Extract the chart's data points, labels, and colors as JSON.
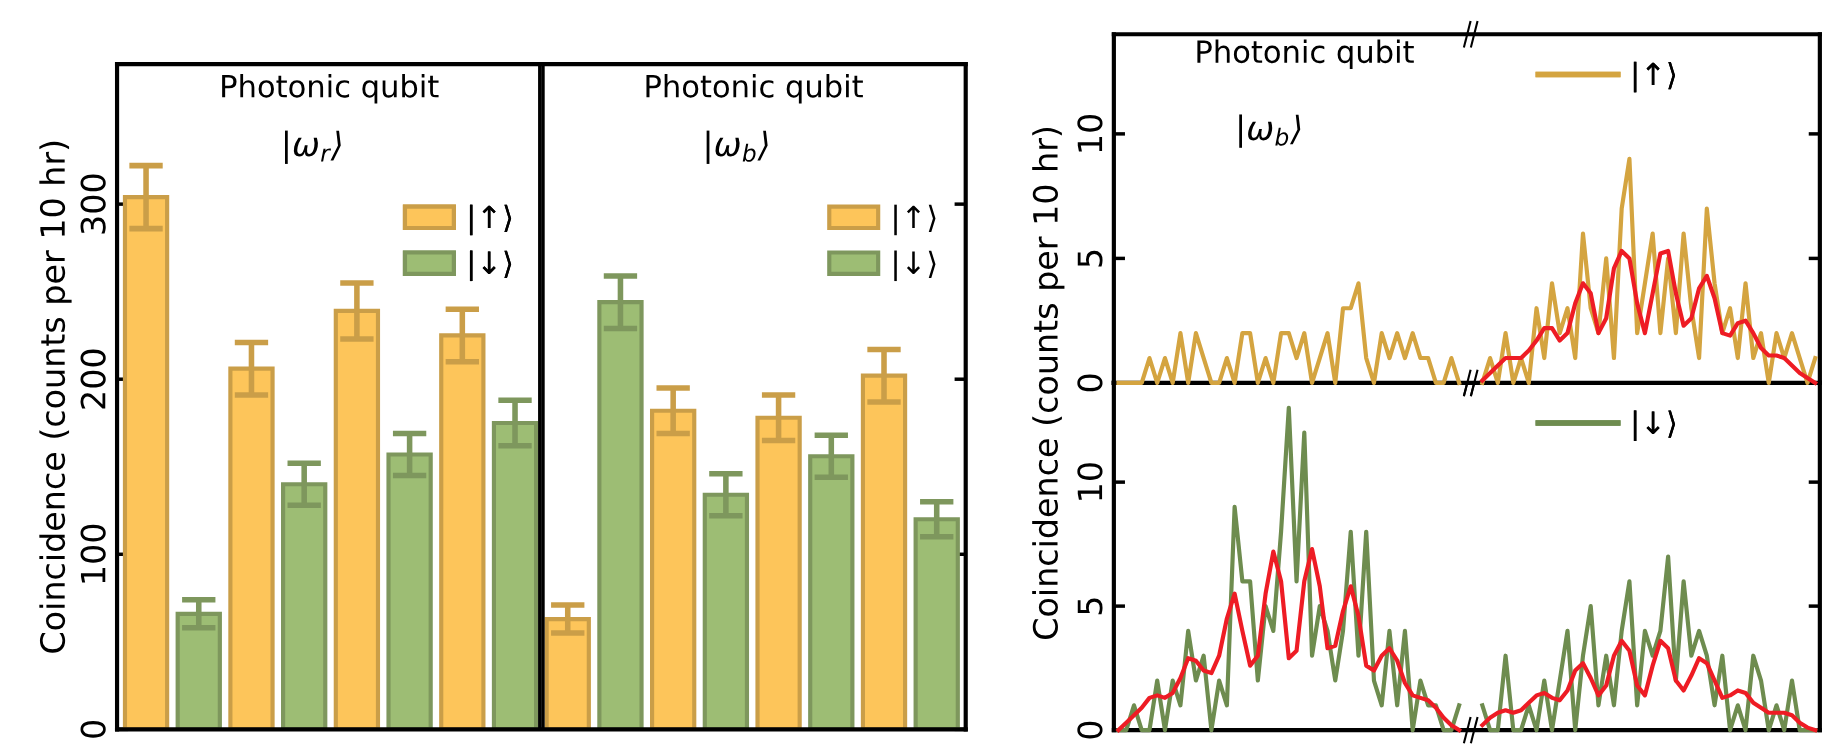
{
  "chart_data": [
    {
      "type": "bar",
      "title": "Photonic qubit",
      "subtitle": "|ω$_{r}$⟩",
      "ylabel": "Coincidence (counts per 10 hr)",
      "annotations": [
        "Photonic qubit",
        "|ω$_{b}$⟩"
      ],
      "categories": [
        null,
        null,
        null,
        null,
        null,
        null,
        null,
        null,
        null,
        null,
        null,
        null,
        null,
        null,
        null,
        null
      ],
      "series": [
        {
          "name": "|↑⟩",
          "color": "#fdc55a",
          "values": [
            304,
            null,
            206,
            null,
            239,
            null,
            225,
            null,
            63,
            null,
            182,
            null,
            178,
            null,
            202,
            null
          ],
          "errors": [
            18,
            null,
            15,
            null,
            16,
            null,
            15,
            null,
            8,
            null,
            13,
            null,
            13,
            null,
            15,
            null
          ]
        },
        {
          "name": "|↓⟩",
          "color": "#9dbd74",
          "values": [
            null,
            66,
            null,
            140,
            null,
            157,
            null,
            175,
            null,
            244,
            null,
            134,
            null,
            156,
            null,
            120
          ],
          "errors": [
            null,
            8,
            null,
            12,
            null,
            12,
            null,
            13,
            null,
            15,
            null,
            12,
            null,
            12,
            null,
            10
          ]
        }
      ],
      "ylim": [
        0,
        380
      ],
      "yticks": [
        0,
        100,
        200,
        300
      ],
      "legend": "top right",
      "tick_labels": "y"
    },
    {
      "type": "line",
      "title": "Photonic qubit",
      "subtitle": "|ω$_{b}$⟩",
      "ylabel": "Coincidence (counts per 10 hr)",
      "categories": [
        null,
        null,
        null,
        null,
        null,
        null,
        null,
        null,
        null,
        null,
        null,
        null,
        null,
        null,
        null,
        null,
        null,
        null,
        null,
        null,
        null,
        null,
        null,
        null,
        null,
        null,
        null,
        null,
        null,
        null,
        null,
        null,
        null,
        null,
        null,
        null,
        null,
        null,
        null,
        null,
        null,
        null,
        null,
        null,
        null,
        null,
        null,
        null,
        null,
        null,
        null,
        null,
        null,
        null,
        null,
        null,
        null,
        null,
        null,
        null,
        null,
        null,
        null,
        null,
        null,
        null,
        null,
        null,
        null,
        null,
        null,
        null,
        null,
        null,
        null,
        null,
        null,
        null,
        null,
        null,
        null,
        null,
        null,
        null,
        null,
        null,
        null,
        null,
        null,
        null,
        null
      ],
      "series": [
        {
          "name": "|↑⟩",
          "color": "#d4a440",
          "values": [
            0,
            0,
            0,
            0,
            1,
            0,
            1,
            0,
            2,
            0,
            2,
            1,
            0,
            0,
            1,
            0,
            2,
            2,
            0,
            1,
            0,
            2,
            2,
            1,
            2,
            0,
            1,
            2,
            0,
            3,
            3,
            4,
            1,
            0,
            2,
            1,
            2,
            1,
            2,
            1,
            1,
            0,
            0,
            1,
            0,
            null,
            null,
            0,
            1,
            0,
            2,
            0,
            1,
            0,
            3,
            1,
            4,
            2,
            3,
            1,
            6,
            3,
            2,
            5,
            1,
            7,
            9,
            2,
            4,
            6,
            2,
            5,
            2,
            6,
            3,
            1,
            7,
            4,
            2,
            3,
            1,
            4,
            1,
            2,
            0,
            2,
            1,
            2,
            1,
            0,
            1
          ]
        },
        {
          "color": "#ee1c24",
          "values": [
            null,
            null,
            null,
            null,
            null,
            null,
            null,
            null,
            null,
            null,
            null,
            null,
            null,
            null,
            null,
            null,
            null,
            null,
            null,
            null,
            null,
            null,
            null,
            null,
            null,
            null,
            null,
            null,
            null,
            null,
            null,
            null,
            null,
            null,
            null,
            null,
            null,
            null,
            null,
            null,
            null,
            null,
            null,
            null,
            null,
            null,
            null,
            0.1,
            0.4,
            0.7,
            1.0,
            1.0,
            1.0,
            1.3,
            1.7,
            2.2,
            2.2,
            1.7,
            2.0,
            3.2,
            4.0,
            3.6,
            2.0,
            2.6,
            4.6,
            5.3,
            5.0,
            3.2,
            2.0,
            3.6,
            5.2,
            5.3,
            3.6,
            2.3,
            2.6,
            3.8,
            4.3,
            3.4,
            2.0,
            1.9,
            2.4,
            2.5,
            2.0,
            1.4,
            1.1,
            1.1,
            1.0,
            0.7,
            0.4,
            0.2,
            0.0
          ]
        }
      ],
      "ylim": [
        0,
        14
      ],
      "yticks": [
        0,
        5,
        10
      ],
      "legend": "top",
      "tick_labels": "y"
    },
    {
      "type": "line",
      "categories": [
        null,
        null,
        null,
        null,
        null,
        null,
        null,
        null,
        null,
        null,
        null,
        null,
        null,
        null,
        null,
        null,
        null,
        null,
        null,
        null,
        null,
        null,
        null,
        null,
        null,
        null,
        null,
        null,
        null,
        null,
        null,
        null,
        null,
        null,
        null,
        null,
        null,
        null,
        null,
        null,
        null,
        null,
        null,
        null,
        null,
        null,
        null,
        null,
        null,
        null,
        null,
        null,
        null,
        null,
        null,
        null,
        null,
        null,
        null,
        null,
        null,
        null,
        null,
        null,
        null,
        null,
        null,
        null,
        null,
        null,
        null,
        null,
        null,
        null,
        null,
        null,
        null,
        null,
        null,
        null,
        null,
        null,
        null,
        null,
        null,
        null,
        null,
        null,
        null,
        null,
        null
      ],
      "series": [
        {
          "name": "|↓⟩",
          "color": "#6e8c4f",
          "values": [
            0,
            0,
            1,
            0,
            0,
            2,
            0,
            2,
            1,
            4,
            2,
            3,
            0,
            2,
            1,
            9,
            6,
            6,
            2,
            5,
            4,
            8,
            13,
            6,
            12,
            3,
            5,
            4,
            2,
            4,
            8,
            3,
            8,
            2,
            1,
            4,
            1,
            4,
            0,
            2,
            1,
            1,
            0,
            0,
            1,
            null,
            null,
            1,
            0,
            0,
            3,
            0,
            0,
            1,
            0,
            2,
            0,
            2,
            4,
            0,
            3,
            5,
            1,
            3,
            1,
            4,
            6,
            1,
            4,
            3,
            4,
            7,
            2,
            6,
            3,
            4,
            3,
            1,
            3,
            0,
            1,
            0,
            3,
            2,
            0,
            1,
            0,
            2,
            0,
            0,
            0
          ]
        },
        {
          "color": "#ee1c24",
          "values": [
            0,
            0.3,
            0.6,
            0.9,
            1.3,
            1.4,
            1.3,
            1.5,
            2.1,
            2.9,
            2.8,
            2.4,
            2.3,
            3.0,
            4.5,
            5.5,
            4.0,
            2.6,
            3.0,
            5.5,
            7.2,
            6.0,
            2.9,
            3.2,
            6.0,
            7.3,
            5.8,
            3.3,
            3.4,
            4.8,
            5.8,
            4.6,
            2.6,
            2.4,
            3.0,
            3.3,
            2.8,
            1.9,
            1.4,
            1.3,
            1.2,
            0.9,
            0.5,
            0.2,
            0.0,
            null,
            null,
            0.2,
            0.5,
            0.7,
            0.8,
            0.7,
            0.8,
            1.1,
            1.4,
            1.5,
            1.3,
            1.2,
            1.6,
            2.4,
            2.7,
            2.1,
            1.4,
            1.8,
            3.0,
            3.6,
            3.2,
            1.8,
            1.4,
            2.6,
            3.6,
            3.3,
            2.0,
            1.6,
            2.2,
            2.9,
            2.7,
            2.0,
            1.3,
            1.4,
            1.6,
            1.5,
            1.1,
            0.9,
            0.7,
            0.7,
            0.7,
            0.6,
            0.3,
            0.1,
            0.0
          ]
        }
      ],
      "ylim": [
        0,
        14
      ],
      "yticks": [
        0,
        5,
        10
      ],
      "legend": "top",
      "tick_labels": "y"
    }
  ]
}
